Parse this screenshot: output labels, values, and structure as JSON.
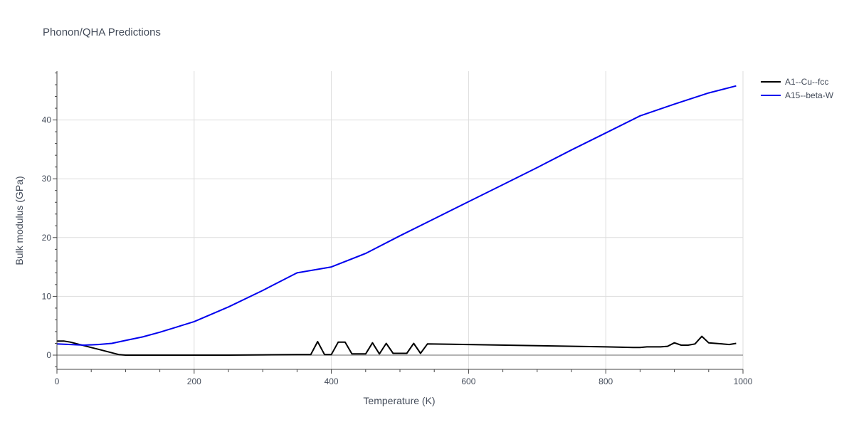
{
  "chart_data": {
    "type": "line",
    "title": "Phonon/QHA Predictions",
    "xlabel": "Temperature (K)",
    "ylabel": "Bulk modulus (GPa)",
    "xlim": [
      0,
      1000
    ],
    "ylim": [
      -2.5,
      48.5
    ],
    "x_ticks": [
      0,
      200,
      400,
      600,
      800,
      1000
    ],
    "y_ticks": [
      0,
      10,
      20,
      30,
      40
    ],
    "grid": true,
    "legend_position": "top-right",
    "series": [
      {
        "name": "A1--Cu--fcc",
        "color": "#000000",
        "x": [
          0,
          10,
          20,
          30,
          40,
          50,
          60,
          70,
          80,
          90,
          100,
          150,
          200,
          250,
          300,
          350,
          370,
          380,
          390,
          400,
          410,
          420,
          430,
          440,
          450,
          460,
          470,
          480,
          490,
          500,
          510,
          520,
          530,
          540,
          600,
          700,
          800,
          840,
          850,
          860,
          870,
          880,
          890,
          900,
          910,
          920,
          930,
          940,
          950,
          960,
          970,
          980,
          990
        ],
        "y": [
          2.4,
          2.4,
          2.2,
          1.9,
          1.6,
          1.3,
          1.0,
          0.7,
          0.4,
          0.1,
          0.0,
          0.0,
          0.0,
          0.0,
          0.05,
          0.1,
          0.1,
          2.3,
          0.1,
          0.1,
          2.2,
          2.2,
          0.2,
          0.2,
          0.2,
          2.1,
          0.2,
          2.0,
          0.3,
          0.3,
          0.3,
          2.0,
          0.3,
          1.9,
          1.8,
          1.6,
          1.4,
          1.3,
          1.3,
          1.4,
          1.4,
          1.4,
          1.5,
          2.1,
          1.7,
          1.7,
          1.9,
          3.2,
          2.1,
          2.0,
          1.9,
          1.8,
          2.0
        ]
      },
      {
        "name": "A15--beta-W",
        "color": "#0000ee",
        "x": [
          0,
          20,
          40,
          60,
          80,
          100,
          125,
          150,
          175,
          200,
          250,
          300,
          350,
          400,
          450,
          500,
          550,
          600,
          650,
          700,
          750,
          800,
          850,
          900,
          950,
          990
        ],
        "y": [
          1.9,
          1.8,
          1.7,
          1.8,
          2.0,
          2.5,
          3.1,
          3.9,
          4.8,
          5.7,
          8.2,
          11.0,
          14.0,
          15.0,
          17.3,
          20.3,
          23.2,
          26.1,
          29.0,
          31.9,
          34.9,
          37.8,
          40.7,
          42.7,
          44.6,
          45.8
        ]
      }
    ]
  }
}
